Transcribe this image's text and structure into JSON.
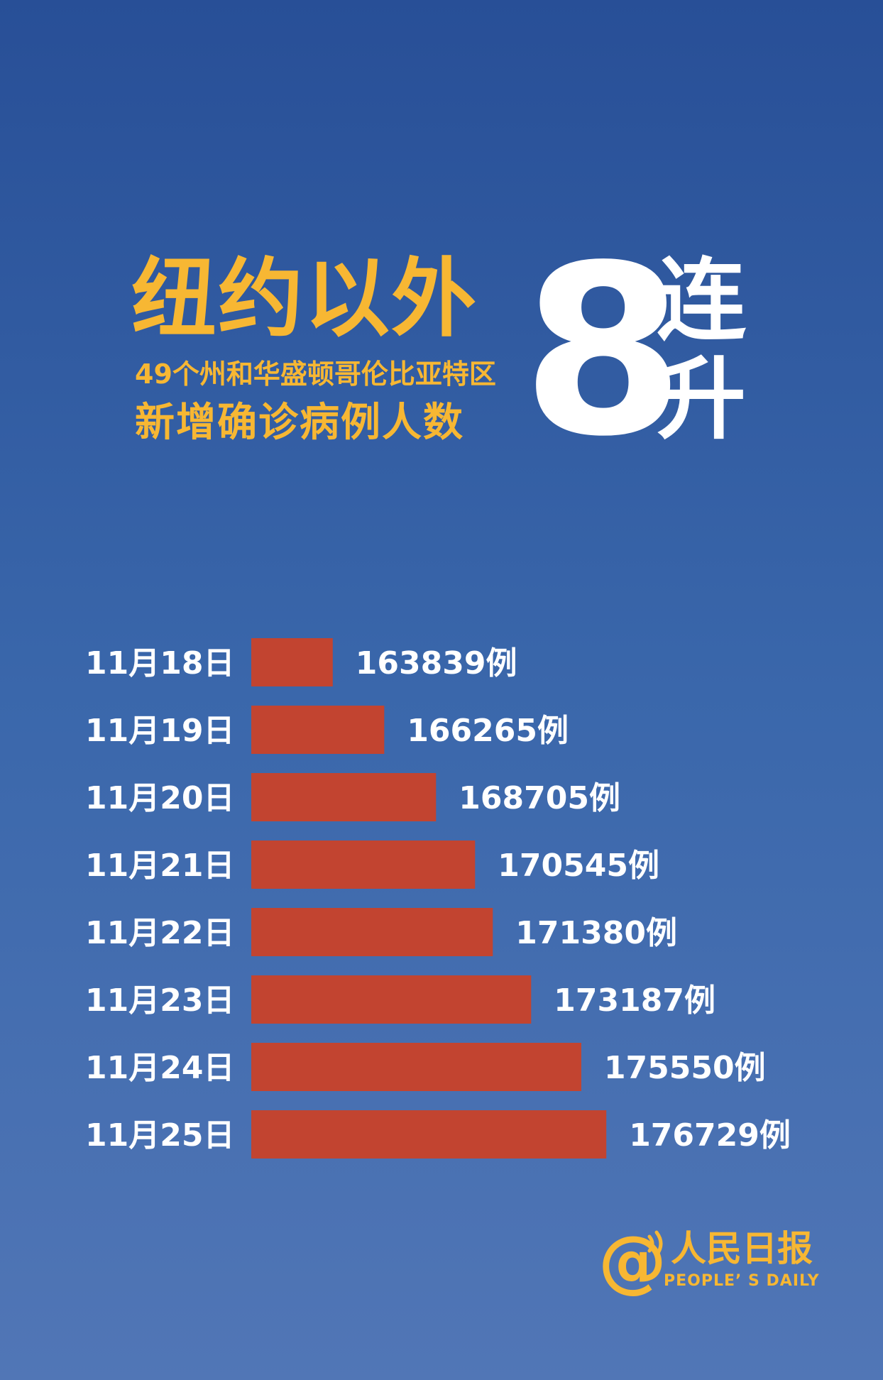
{
  "headline": {
    "main": "纽约以外",
    "sub1": "49个州和华盛顿哥伦比亚特区",
    "sub2": "新增确诊病例人数",
    "number": "8",
    "side_word": "连升"
  },
  "chart_data": {
    "type": "bar",
    "orientation": "horizontal",
    "categories": [
      "11月18日",
      "11月19日",
      "11月20日",
      "11月21日",
      "11月22日",
      "11月23日",
      "11月24日",
      "11月25日"
    ],
    "values": [
      163839,
      166265,
      168705,
      170545,
      171380,
      173187,
      175550,
      176729
    ],
    "value_labels": [
      "163839例",
      "166265例",
      "168705例",
      "170545例",
      "171380例",
      "173187例",
      "175550例",
      "176729例"
    ],
    "xlim": [
      160000,
      177500
    ],
    "grid": false,
    "legend": "none",
    "bar_color": "#c24430",
    "label_color": "#ffffff"
  },
  "logo": {
    "cn": "人民日报",
    "en": "PEOPLE’ S DAILY"
  },
  "colors": {
    "accent": "#f7b733",
    "background_top": "#284f97",
    "background_bottom": "#5176b6"
  }
}
